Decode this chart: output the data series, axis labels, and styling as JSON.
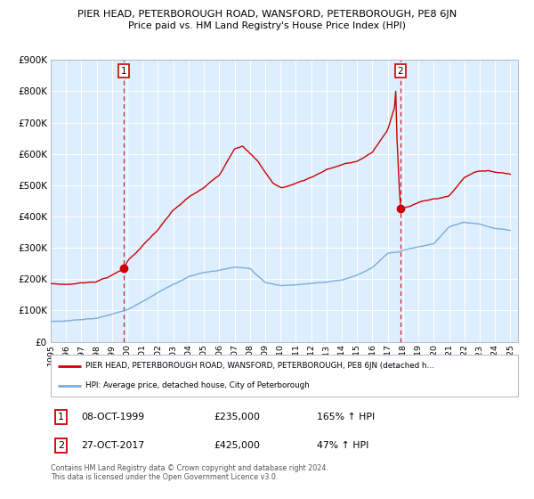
{
  "title": "PIER HEAD, PETERBOROUGH ROAD, WANSFORD, PETERBOROUGH, PE8 6JN",
  "subtitle": "Price paid vs. HM Land Registry's House Price Index (HPI)",
  "legend_line1": "PIER HEAD, PETERBOROUGH ROAD, WANSFORD, PETERBOROUGH, PE8 6JN (detached h…",
  "legend_line2": "HPI: Average price, detached house, City of Peterborough",
  "footnote": "Contains HM Land Registry data © Crown copyright and database right 2024.\nThis data is licensed under the Open Government Licence v3.0.",
  "red_color": "#cc0000",
  "blue_color": "#7aadda",
  "background_color": "#ddeeff",
  "ylim": [
    0,
    900000
  ],
  "sale1_year": 1999.78,
  "sale1_price": 235000,
  "sale2_year": 2017.82,
  "sale2_price": 425000,
  "xstart": 1995,
  "xend": 2025.5
}
